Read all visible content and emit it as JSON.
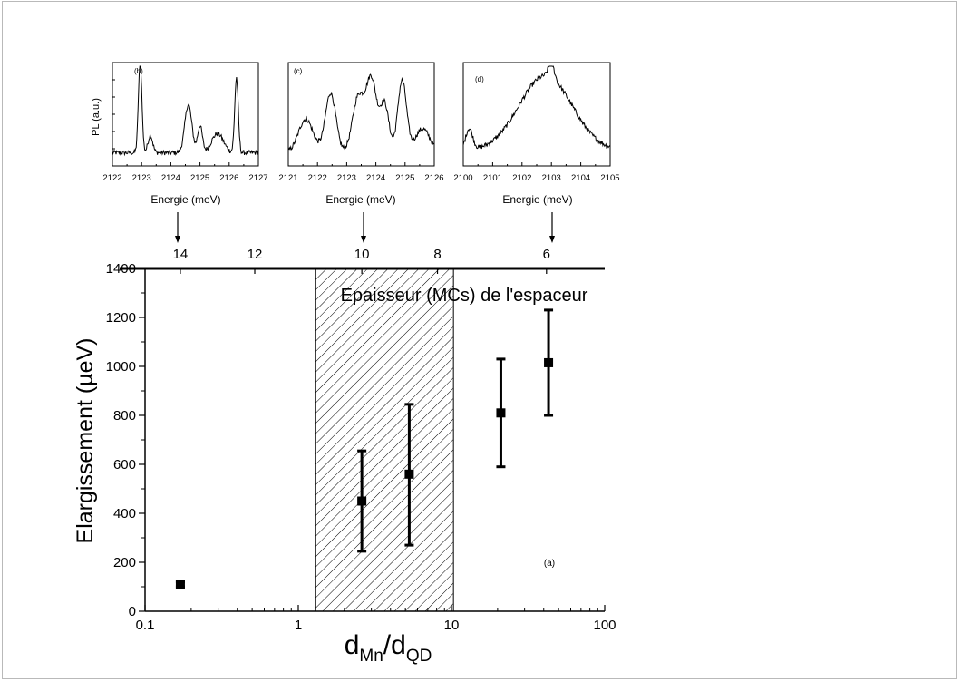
{
  "chart_data": [
    {
      "type": "scatter",
      "panel": "(a)",
      "x_scale": "log",
      "xlim": [
        0.1,
        100
      ],
      "ylim": [
        0,
        1400
      ],
      "xlabel_main": "d",
      "xlabel_sub1": "Mn",
      "xlabel_sep": "/d",
      "xlabel_sub2": "QD",
      "ylabel": "Elargissement (µeV)",
      "x_ticks": [
        0.1,
        1,
        10,
        100
      ],
      "x_tick_labels": [
        "0.1",
        "1",
        "10",
        "100"
      ],
      "y_ticks": [
        0,
        200,
        400,
        600,
        800,
        1000,
        1200,
        1400
      ],
      "y_tick_labels": [
        "0",
        "200",
        "400",
        "600",
        "800",
        "1000",
        "1200",
        "1400"
      ],
      "top_axis_label": "Epaisseur (MCs) de l'espaceur",
      "top_ticks_at_x": [
        0.17,
        0.52,
        2.6,
        8.1,
        41.7
      ],
      "top_tick_labels": [
        "14",
        "12",
        "10",
        "8",
        "6"
      ],
      "shaded_region_x": [
        1.3,
        10.3
      ],
      "points": [
        {
          "x": 0.17,
          "y": 110,
          "ylow": 100,
          "yhigh": 120
        },
        {
          "x": 2.6,
          "y": 450,
          "ylow": 245,
          "yhigh": 655
        },
        {
          "x": 5.3,
          "y": 560,
          "ylow": 270,
          "yhigh": 845
        },
        {
          "x": 21,
          "y": 810,
          "ylow": 590,
          "yhigh": 1030
        },
        {
          "x": 43,
          "y": 1015,
          "ylow": 800,
          "yhigh": 1230
        }
      ]
    },
    {
      "type": "line",
      "panel": "(b)",
      "xlabel": "Energie (meV)",
      "ylabel": "PL (a.u.)",
      "xlim": [
        2122,
        2127
      ],
      "x_tick_labels": [
        "2122",
        "2123",
        "2124",
        "2125",
        "2126",
        "2127"
      ],
      "peaks": [
        {
          "x": 2122.95,
          "h": 0.95,
          "w": 0.06
        },
        {
          "x": 2123.3,
          "h": 0.18,
          "w": 0.08
        },
        {
          "x": 2124.6,
          "h": 0.5,
          "w": 0.12
        },
        {
          "x": 2125.0,
          "h": 0.28,
          "w": 0.08
        },
        {
          "x": 2125.6,
          "h": 0.2,
          "w": 0.2
        },
        {
          "x": 2126.25,
          "h": 0.78,
          "w": 0.06
        }
      ],
      "baseline": 0.1
    },
    {
      "type": "line",
      "panel": "(c)",
      "xlabel": "Energie (meV)",
      "xlim": [
        2121,
        2126
      ],
      "x_tick_labels": [
        "2121",
        "2122",
        "2123",
        "2124",
        "2125",
        "2126"
      ],
      "peaks": [
        {
          "x": 2121.6,
          "h": 0.35,
          "w": 0.25
        },
        {
          "x": 2122.45,
          "h": 0.62,
          "w": 0.18
        },
        {
          "x": 2123.4,
          "h": 0.58,
          "w": 0.2
        },
        {
          "x": 2123.85,
          "h": 0.75,
          "w": 0.18
        },
        {
          "x": 2124.3,
          "h": 0.5,
          "w": 0.15
        },
        {
          "x": 2124.9,
          "h": 0.75,
          "w": 0.15
        },
        {
          "x": 2125.6,
          "h": 0.25,
          "w": 0.25
        }
      ],
      "baseline": 0.1
    },
    {
      "type": "line",
      "panel": "(d)",
      "xlabel": "Energie (meV)",
      "xlim": [
        2100,
        2105
      ],
      "x_tick_labels": [
        "2100",
        "2101",
        "2102",
        "2103",
        "2104",
        "2105"
      ],
      "peaks": [
        {
          "x": 2100.2,
          "h": 0.22,
          "w": 0.12
        },
        {
          "x": 2102.8,
          "h": 0.78,
          "w": 0.9
        },
        {
          "x": 2103.0,
          "h": 0.15,
          "w": 0.1
        }
      ],
      "baseline": 0.12
    }
  ]
}
